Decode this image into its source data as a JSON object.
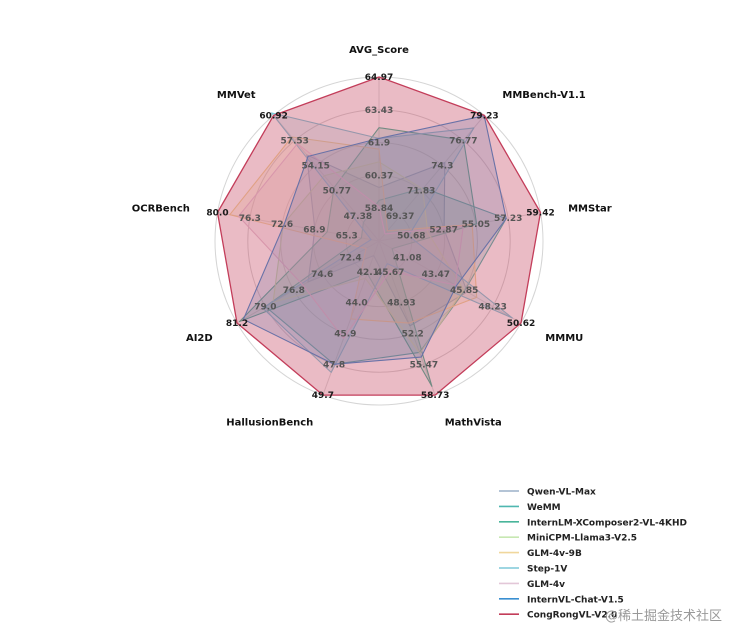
{
  "chart_data": {
    "type": "radar",
    "axes": [
      "AVG_Score",
      "MMBench-V1.1",
      "MMStar",
      "MMMU",
      "MathVista",
      "HallusionBench",
      "AI2D",
      "OCRBench",
      "MMVet"
    ],
    "axis_ticks": [
      [
        "58.84",
        "60.37",
        "61.9",
        "63.43",
        "64.97"
      ],
      [
        "69.37",
        "71.83",
        "74.3",
        "76.77",
        "79.23"
      ],
      [
        "50.68",
        "52.87",
        "55.05",
        "57.23",
        "59.42"
      ],
      [
        "41.08",
        "43.47",
        "45.85",
        "48.23",
        "50.62"
      ],
      [
        "45.67",
        "48.93",
        "52.2",
        "55.47",
        "58.73"
      ],
      [
        "42.1",
        "44.0",
        "45.9",
        "47.8",
        "49.7"
      ],
      [
        "72.4",
        "74.6",
        "76.8",
        "79.0",
        "81.2"
      ],
      [
        "65.3",
        "68.9",
        "72.6",
        "76.3",
        "80.0"
      ],
      [
        "47.38",
        "50.77",
        "54.15",
        "57.53",
        "60.92"
      ]
    ],
    "axis_ranges": [
      [
        57.3,
        64.97
      ],
      [
        66.9,
        79.23
      ],
      [
        48.5,
        59.42
      ],
      [
        38.7,
        50.62
      ],
      [
        42.4,
        58.73
      ],
      [
        40.2,
        49.7
      ],
      [
        70.2,
        81.2
      ],
      [
        61.6,
        80.0
      ],
      [
        44.0,
        60.92
      ]
    ],
    "series": [
      {
        "name": "Qwen-VL-Max",
        "color": "#9bb0c8",
        "values": [
          59.8,
          74.6,
          52.9,
          46.1,
          51.4,
          41.1,
          75.7,
          68.9,
          55.6
        ]
      },
      {
        "name": "WeMM",
        "color": "#4fb7b0",
        "values": [
          59.2,
          72.1,
          57.1,
          45.9,
          54.2,
          47.8,
          79.0,
          63.6,
          46.5
        ]
      },
      {
        "name": "InternLM-XComposer2-VL-4KHD",
        "color": "#49b59a",
        "values": [
          62.6,
          76.8,
          55.1,
          39.8,
          57.8,
          42.2,
          81.0,
          67.5,
          51.2
        ]
      },
      {
        "name": "MiniCPM-Llama3-V2.5",
        "color": "#c7e8b2",
        "values": [
          61.0,
          72.0,
          51.8,
          45.8,
          54.3,
          42.5,
          78.4,
          72.5,
          52.8
        ]
      },
      {
        "name": "GLM-4v-9B",
        "color": "#f0d79c",
        "values": [
          61.6,
          67.9,
          54.8,
          46.9,
          51.1,
          45.0,
          71.2,
          78.6,
          58.0
        ]
      },
      {
        "name": "Step-1V",
        "color": "#7ec8d8",
        "values": [
          62.1,
          78.0,
          50.5,
          49.9,
          44.8,
          48.3,
          79.2,
          62.5,
          63.7
        ]
      },
      {
        "name": "GLM-4v",
        "color": "#e3c7d8",
        "values": [
          58.9,
          67.6,
          54.2,
          45.1,
          45.6,
          46.2,
          76.1,
          77.6,
          57.1
        ]
      },
      {
        "name": "InternVL-Chat-V1.5",
        "color": "#3a8fd1",
        "values": [
          62.1,
          79.2,
          57.1,
          45.2,
          54.7,
          47.8,
          80.7,
          72.4,
          55.4
        ]
      },
      {
        "name": "CongRongVL-V2.0",
        "color": "#c33d5a",
        "values": [
          64.97,
          79.23,
          59.42,
          50.62,
          58.73,
          49.7,
          81.2,
          80.0,
          60.92
        ]
      }
    ],
    "grid": true,
    "legend_position": "bottom-right"
  },
  "watermark": "@稀土掘金技术社区"
}
